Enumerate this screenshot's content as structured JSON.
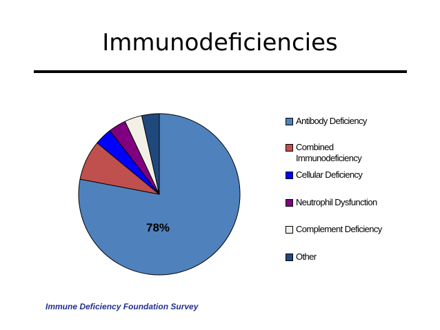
{
  "title": "Immunodeficiencies",
  "source": "Immune Deficiency Foundation Survey",
  "chart_data": {
    "type": "pie",
    "slices": [
      {
        "label": "Antibody Deficiency",
        "value": 78,
        "color": "#4f81bd"
      },
      {
        "label": "Combined Immunodeficiency",
        "value": 8,
        "color": "#c0504d"
      },
      {
        "label": "Cellular Deficiency",
        "value": 3.5,
        "color": "#0000ff"
      },
      {
        "label": "Neutrophil Dysfunction",
        "value": 3.5,
        "color": "#800080"
      },
      {
        "label": "Complement Deficiency",
        "value": 3.5,
        "color": "#f2efe6"
      },
      {
        "label": "Other",
        "value": 3.5,
        "color": "#1f497d"
      }
    ],
    "data_labels": [
      "78%"
    ],
    "legend_placement": "right"
  }
}
